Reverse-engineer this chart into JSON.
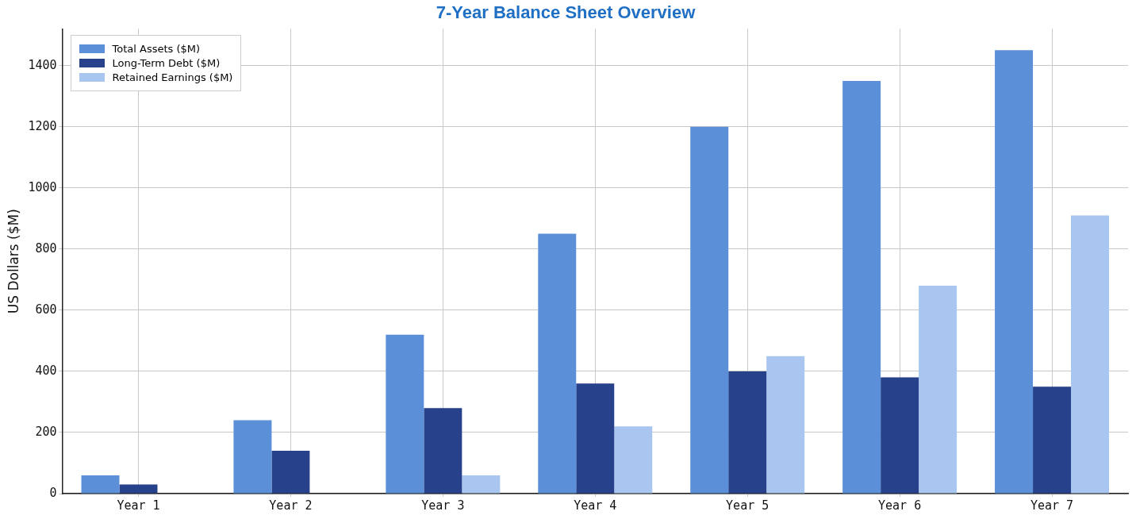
{
  "chart_data": {
    "type": "bar",
    "title": "7-Year Balance Sheet Overview",
    "ylabel": "US Dollars ($M)",
    "categories": [
      "Year 1",
      "Year 2",
      "Year 3",
      "Year 4",
      "Year 5",
      "Year 6",
      "Year 7"
    ],
    "series": [
      {
        "name": "Total Assets ($M)",
        "color": "#5b90d9",
        "values": [
          60,
          240,
          520,
          850,
          1200,
          1350,
          1450
        ]
      },
      {
        "name": "Long-Term Debt ($M)",
        "color": "#27418a",
        "values": [
          30,
          140,
          280,
          360,
          400,
          380,
          350
        ]
      },
      {
        "name": "Retained Earnings ($M)",
        "color": "#a8c6f0",
        "values": [
          0,
          0,
          60,
          220,
          450,
          680,
          910
        ]
      }
    ],
    "ylim": [
      0,
      1520
    ],
    "yticks": [
      0,
      200,
      400,
      600,
      800,
      1000,
      1200,
      1400
    ],
    "grid": true,
    "legend": "top left"
  }
}
